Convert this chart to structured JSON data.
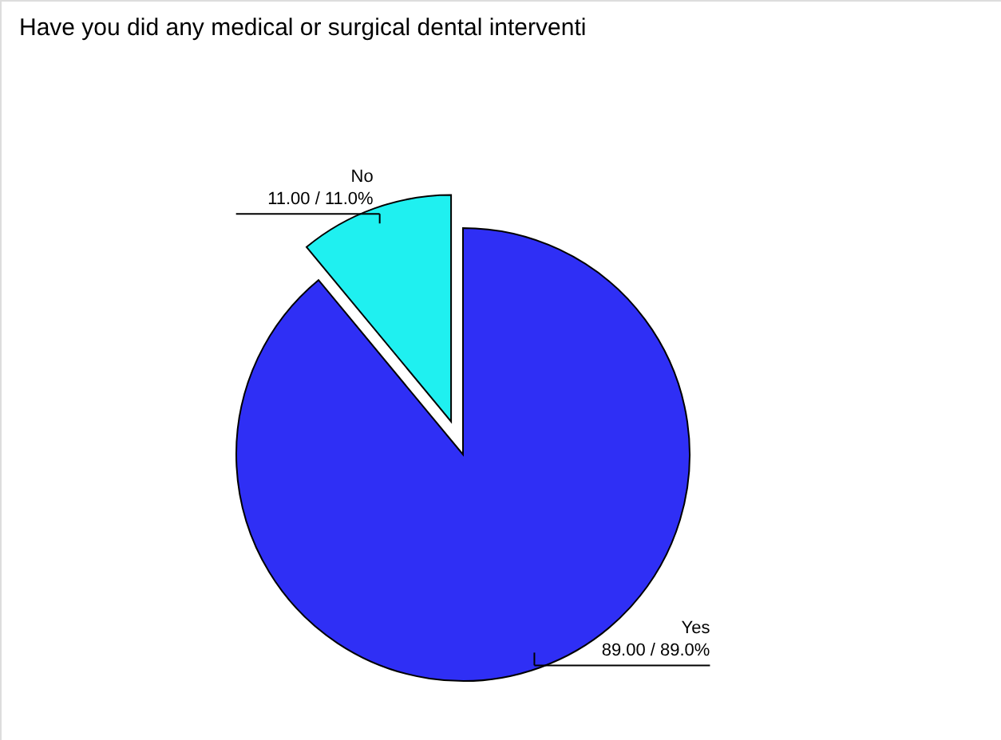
{
  "chart_data": {
    "type": "pie",
    "title": "Have you did any medical or surgical dental interventi",
    "categories": [
      "Yes",
      "No"
    ],
    "values": [
      89,
      11
    ],
    "colors": [
      "#2f2ff5",
      "#1ff0f0"
    ],
    "value_labels": [
      "89.00 / 89.0%",
      "11.00 / 11.0%"
    ]
  }
}
